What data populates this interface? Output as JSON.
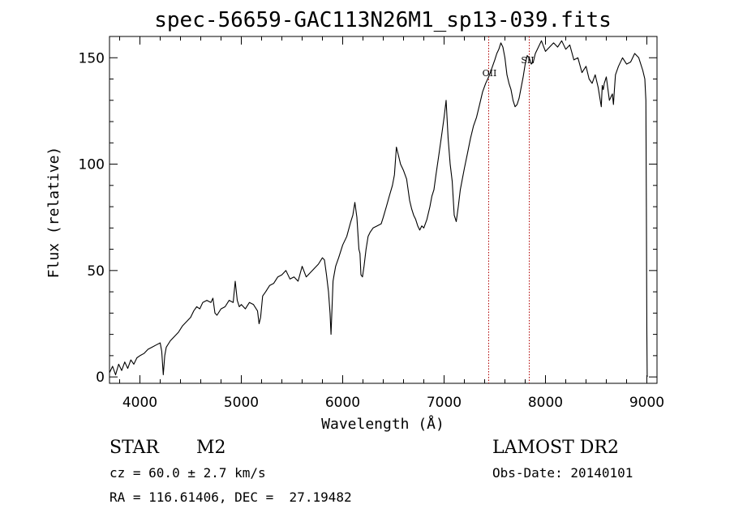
{
  "chart_data": {
    "type": "line",
    "title": "spec-56659-GAC113N26M1_sp13-039.fits",
    "xlabel": "Wavelength (Å)",
    "ylabel": "Flux (relative)",
    "xlim": [
      3700,
      9100
    ],
    "ylim": [
      -3,
      160
    ],
    "x_ticks": [
      4000,
      5000,
      6000,
      7000,
      8000,
      9000
    ],
    "x_tick_labels": [
      "4000",
      "5000",
      "6000",
      "7000",
      "8000",
      "9000"
    ],
    "y_ticks": [
      0,
      50,
      100,
      150
    ],
    "y_tick_labels": [
      "0",
      "50",
      "100",
      "150"
    ],
    "grid": false,
    "series": [
      {
        "line_color": "#000000",
        "x": [
          3700,
          3730,
          3760,
          3790,
          3820,
          3850,
          3880,
          3910,
          3940,
          3970,
          4000,
          4040,
          4080,
          4120,
          4160,
          4200,
          4215,
          4230,
          4245,
          4260,
          4300,
          4340,
          4380,
          4420,
          4460,
          4500,
          4530,
          4560,
          4590,
          4620,
          4660,
          4700,
          4720,
          4740,
          4760,
          4800,
          4840,
          4880,
          4920,
          4940,
          4960,
          4980,
          5000,
          5040,
          5080,
          5120,
          5160,
          5175,
          5190,
          5210,
          5240,
          5280,
          5320,
          5360,
          5400,
          5440,
          5480,
          5520,
          5560,
          5600,
          5640,
          5680,
          5720,
          5760,
          5800,
          5820,
          5840,
          5860,
          5875,
          5885,
          5895,
          5905,
          5915,
          5930,
          5960,
          6000,
          6040,
          6080,
          6100,
          6120,
          6140,
          6160,
          6170,
          6180,
          6195,
          6210,
          6230,
          6250,
          6270,
          6300,
          6340,
          6380,
          6400,
          6430,
          6460,
          6490,
          6510,
          6530,
          6550,
          6570,
          6600,
          6630,
          6660,
          6680,
          6700,
          6720,
          6740,
          6760,
          6780,
          6800,
          6830,
          6860,
          6880,
          6900,
          6920,
          6950,
          6980,
          7000,
          7020,
          7040,
          7060,
          7080,
          7100,
          7120,
          7140,
          7160,
          7180,
          7200,
          7230,
          7260,
          7290,
          7320,
          7350,
          7380,
          7410,
          7440,
          7470,
          7500,
          7520,
          7540,
          7560,
          7580,
          7600,
          7620,
          7640,
          7660,
          7680,
          7700,
          7720,
          7740,
          7760,
          7780,
          7800,
          7820,
          7840,
          7860,
          7880,
          7900,
          7930,
          7960,
          8000,
          8040,
          8080,
          8120,
          8160,
          8200,
          8240,
          8280,
          8320,
          8360,
          8400,
          8430,
          8460,
          8490,
          8520,
          8550,
          8560,
          8570,
          8580,
          8600,
          8630,
          8660,
          8670,
          8680,
          8690,
          8720,
          8760,
          8800,
          8840,
          8880,
          8920,
          8960,
          8980,
          8990,
          8995,
          9000,
          9003
        ],
        "values": [
          2,
          5,
          1,
          6,
          3,
          7,
          4,
          8,
          6,
          9,
          10,
          11,
          13,
          14,
          15,
          16,
          12,
          1,
          10,
          14,
          17,
          19,
          21,
          24,
          26,
          28,
          31,
          33,
          32,
          35,
          36,
          35,
          37,
          30,
          29,
          32,
          33,
          36,
          35,
          45,
          36,
          33,
          34,
          32,
          35,
          34,
          31,
          25,
          28,
          38,
          40,
          43,
          44,
          47,
          48,
          50,
          46,
          47,
          45,
          52,
          47,
          49,
          51,
          53,
          56,
          55,
          48,
          40,
          30,
          20,
          33,
          45,
          48,
          52,
          56,
          62,
          66,
          73,
          76,
          82,
          75,
          60,
          58,
          48,
          47,
          52,
          60,
          66,
          68,
          70,
          71,
          72,
          75,
          80,
          85,
          90,
          95,
          108,
          104,
          100,
          97,
          93,
          83,
          79,
          76,
          74,
          71,
          69,
          71,
          70,
          74,
          80,
          85,
          88,
          95,
          105,
          115,
          122,
          130,
          112,
          100,
          92,
          76,
          73,
          80,
          88,
          93,
          98,
          105,
          112,
          118,
          122,
          128,
          134,
          138,
          141,
          145,
          149,
          152,
          154,
          157,
          155,
          150,
          142,
          138,
          135,
          130,
          127,
          128,
          131,
          136,
          141,
          147,
          151,
          150,
          147,
          148,
          152,
          155,
          158,
          153,
          155,
          157,
          155,
          158,
          154,
          156,
          149,
          150,
          143,
          146,
          140,
          138,
          142,
          136,
          127,
          137,
          135,
          138,
          141,
          130,
          133,
          128,
          135,
          142,
          146,
          150,
          147,
          148,
          152,
          150,
          144,
          140,
          130,
          80,
          20,
          0
        ]
      }
    ],
    "annotations": [
      {
        "label": "OII",
        "x": 7440
      },
      {
        "label": "SII",
        "x": 7840
      }
    ],
    "annotation_color": "#b00000"
  },
  "info": {
    "object_class": "STAR",
    "subclass": "M2",
    "redshift": "cz = 60.0 ± 2.7 km/s",
    "coords": "RA = 116.61406, DEC =  27.19482",
    "survey": "LAMOST DR2",
    "obs_date": "Obs-Date: 20140101"
  }
}
